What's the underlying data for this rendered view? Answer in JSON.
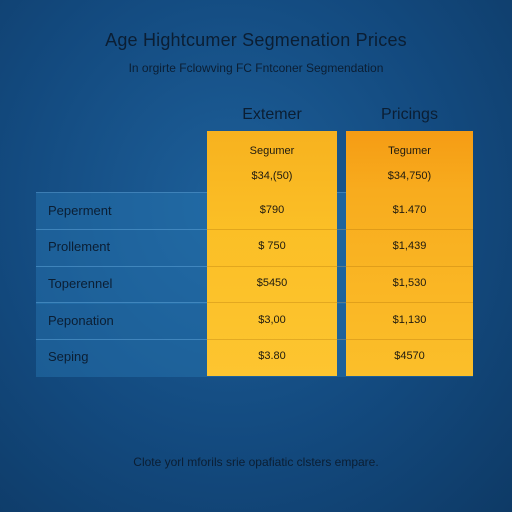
{
  "title": "Age Hightcumer Segmenation Prices",
  "subtitle": "In orgirte Fclowving FC Fntconer Segmendation",
  "columns": [
    "Extemer",
    "Pricings"
  ],
  "subheaders": [
    "Segumer",
    "Tegumer"
  ],
  "subvalues": [
    "$34,(50)",
    "$34,750)"
  ],
  "rows": [
    {
      "label": "Peperment",
      "a": "$790",
      "b": "$1.470"
    },
    {
      "label": "Prollement",
      "a": "$ 750",
      "b": "$1,439"
    },
    {
      "label": "Toperennel",
      "a": "$5450",
      "b": "$1,530"
    },
    {
      "label": "Peponation",
      "a": "$3,00",
      "b": "$1,130"
    },
    {
      "label": "Seping",
      "a": "$3.80",
      "b": "$4570"
    }
  ],
  "footer": "Clote yorl mforils srie opafiatic clsters empare."
}
